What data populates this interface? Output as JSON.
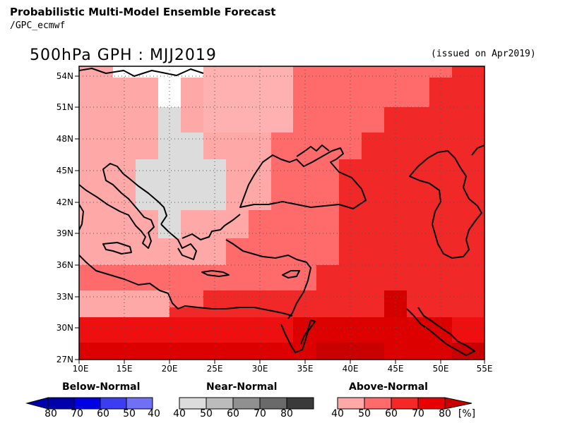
{
  "header": {
    "title": "Probabilistic Multi-Model Ensemble Forecast",
    "subtitle": "/GPC_ecmwf",
    "map_title": "500hPa GPH : MJJ2019",
    "issued": "(issued on Apr2019)"
  },
  "axes": {
    "lat_labels": [
      "54N",
      "51N",
      "48N",
      "45N",
      "42N",
      "39N",
      "36N",
      "33N",
      "30N",
      "27N"
    ],
    "lon_labels": [
      "10E",
      "15E",
      "20E",
      "25E",
      "30E",
      "35E",
      "40E",
      "45E",
      "50E",
      "55E"
    ]
  },
  "legend": {
    "below": {
      "title": "Below-Normal",
      "ticks": [
        "80",
        "70",
        "60",
        "50",
        "40"
      ],
      "colors": [
        "#0000aa",
        "#0000e0",
        "#3c3cf0",
        "#7070f5",
        "#a8a8fa"
      ]
    },
    "near": {
      "title": "Near-Normal",
      "ticks": [
        "40",
        "50",
        "60",
        "70",
        "80"
      ],
      "colors": [
        "#dcdcdc",
        "#bcbcbc",
        "#909090",
        "#6a6a6a",
        "#3a3a3a"
      ]
    },
    "above": {
      "title": "Above-Normal",
      "ticks": [
        "40",
        "50",
        "60",
        "70",
        "80"
      ],
      "colors": [
        "#ffa8a8",
        "#ff6a6a",
        "#f52828",
        "#e80000",
        "#c80000"
      ]
    },
    "unit": "[%]"
  }
}
